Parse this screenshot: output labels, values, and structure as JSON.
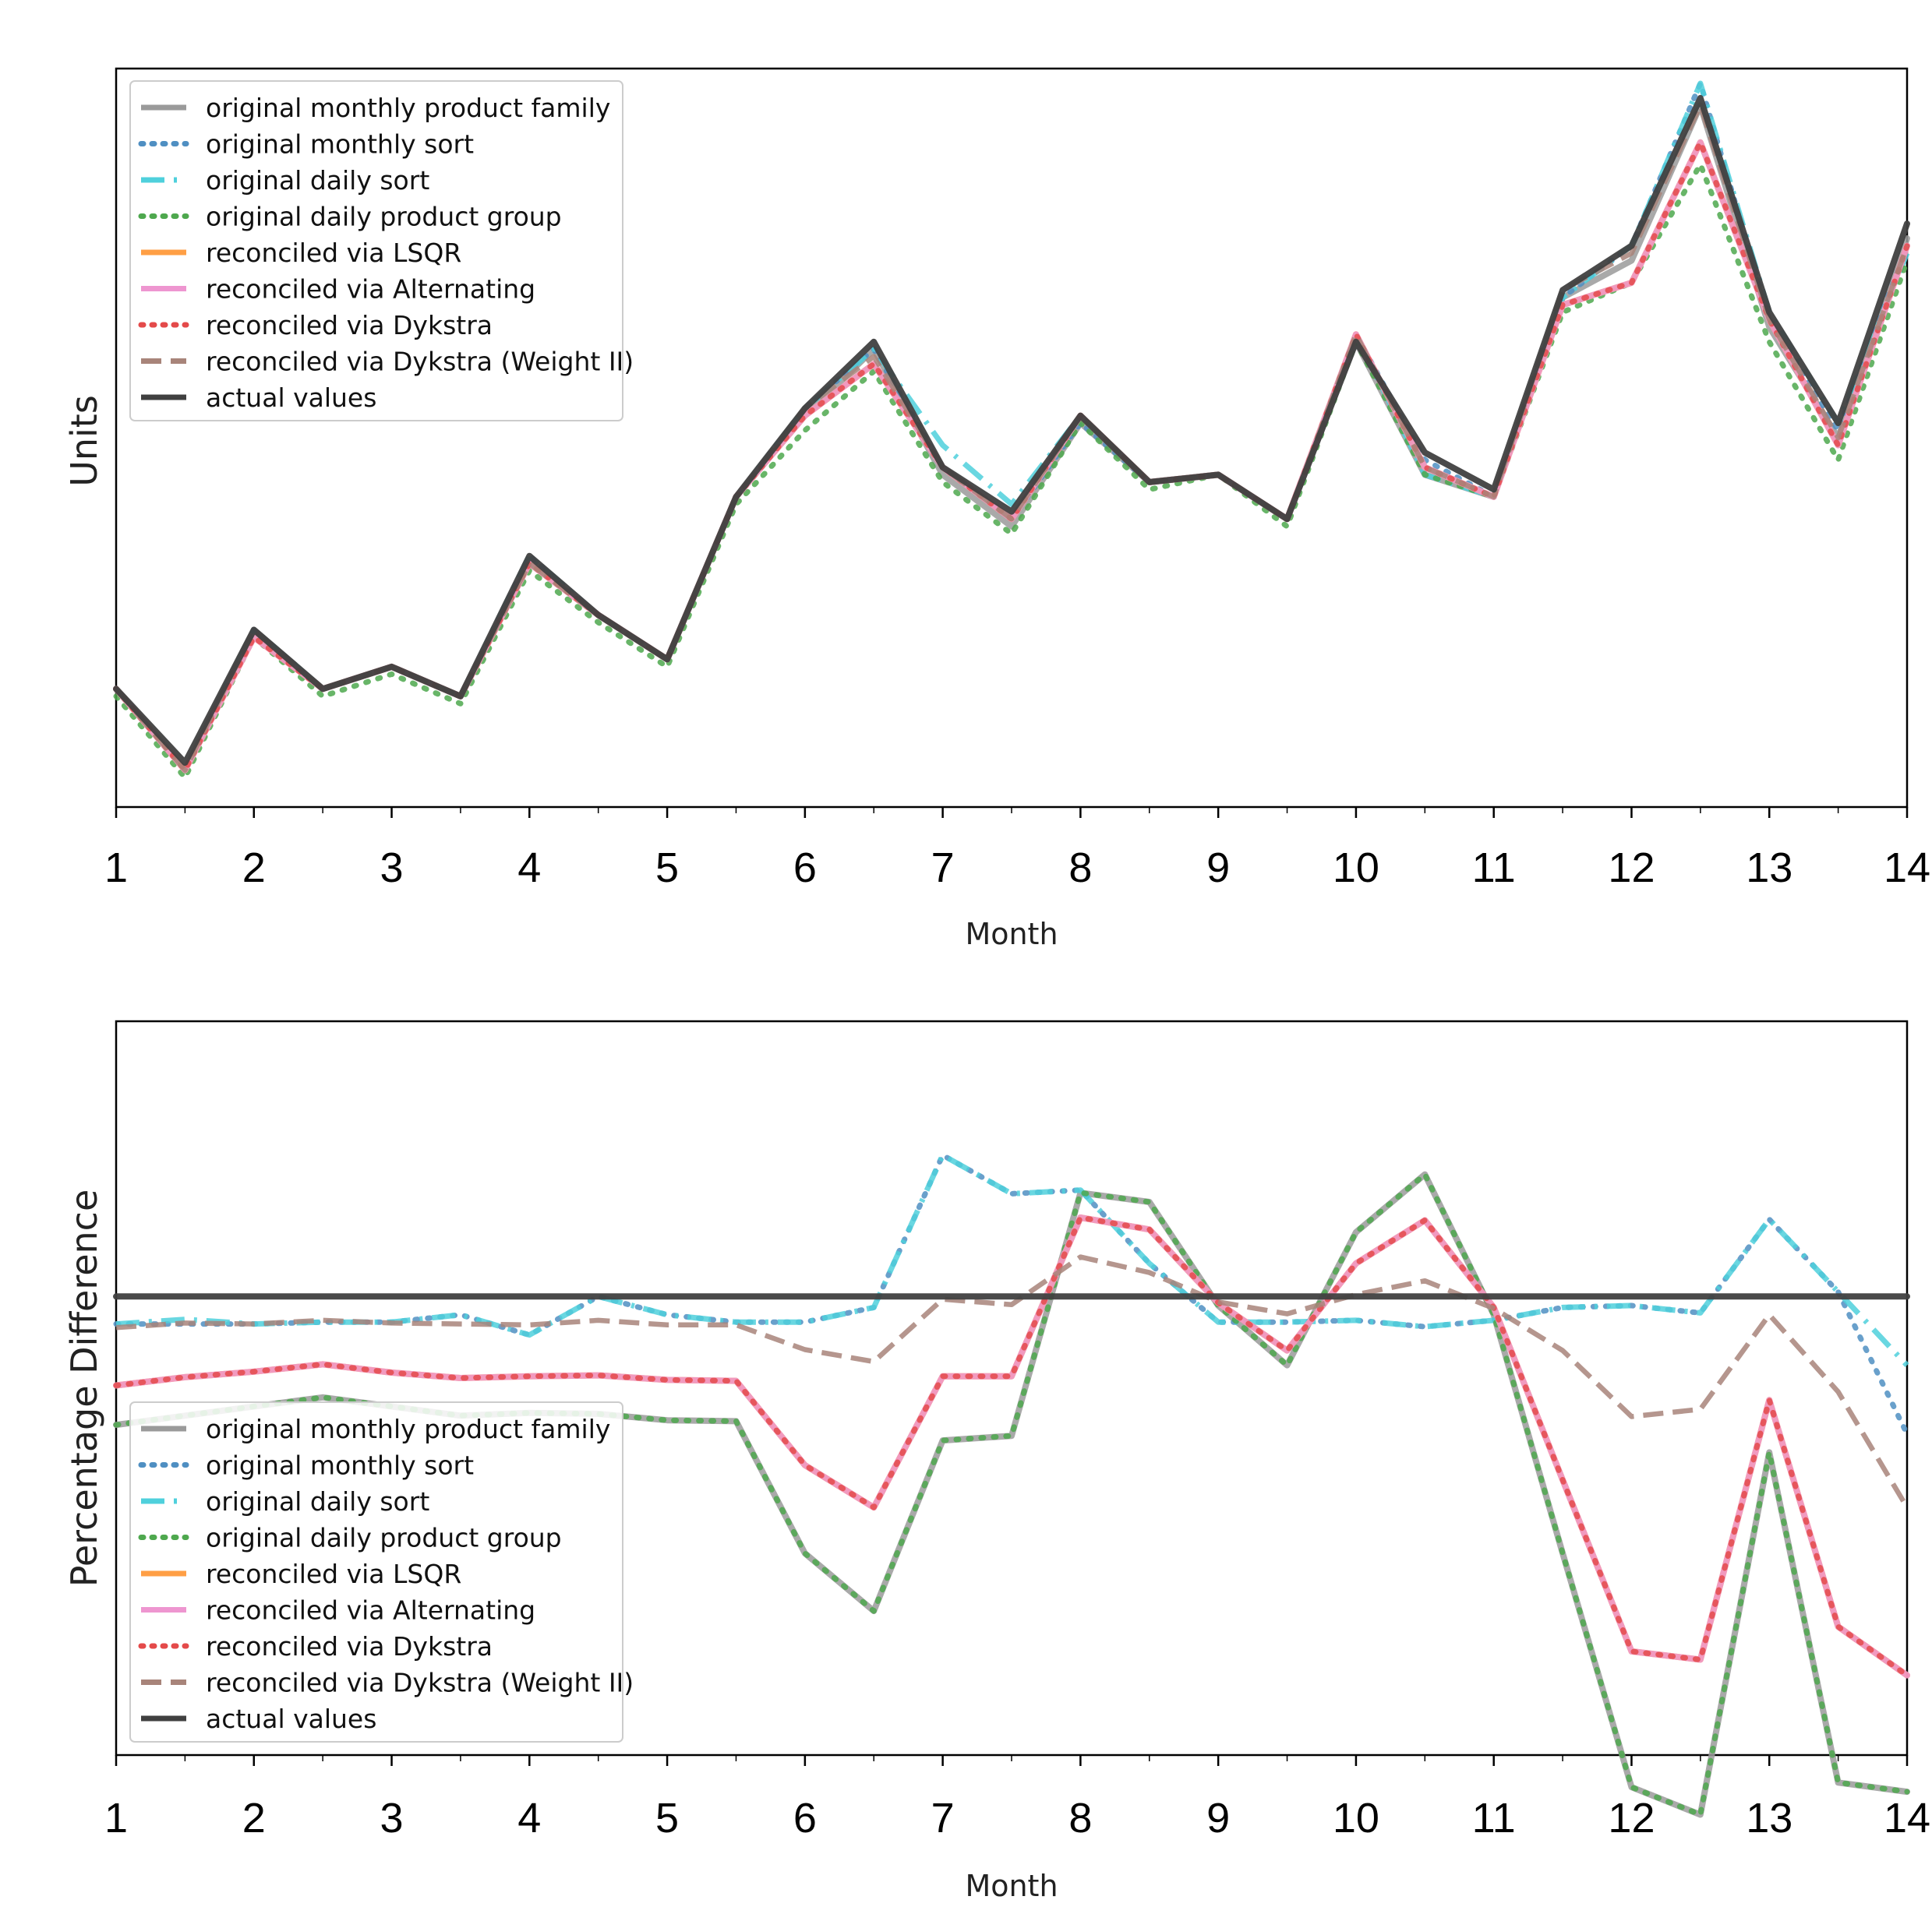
{
  "chart_data": [
    {
      "type": "line",
      "title": "",
      "xlabel": "Month",
      "ylabel": "Units",
      "xlim": [
        1,
        14
      ],
      "ylim": [
        0,
        100
      ],
      "x_ticks": [
        "1",
        "2",
        "3",
        "4",
        "5",
        "6",
        "7",
        "8",
        "9",
        "10",
        "11",
        "12",
        "13",
        "14"
      ],
      "x": [
        1,
        1.5,
        2,
        2.5,
        3,
        3.5,
        4,
        4.5,
        5,
        5.5,
        6,
        6.5,
        7,
        7.5,
        8,
        8.5,
        9,
        9.5,
        10,
        10.5,
        11,
        11.5,
        12,
        12.5,
        13,
        13.5,
        14
      ],
      "legend_position": "upper-left",
      "series": [
        {
          "name": "original monthly product family",
          "color": "#9a9a9a",
          "style": "solid",
          "values": [
            16,
            5,
            24,
            16,
            19,
            15,
            33,
            26,
            20,
            42,
            53,
            62,
            45,
            38,
            52,
            44,
            45,
            39,
            63,
            45,
            42,
            69,
            74,
            95,
            65,
            50,
            77
          ]
        },
        {
          "name": "original monthly sort",
          "color": "#4f8fc2",
          "style": "dotted",
          "values": [
            16,
            5,
            24,
            16,
            19,
            15,
            34,
            26,
            20,
            42,
            54,
            62,
            46,
            39,
            52,
            44,
            45,
            39,
            64,
            47,
            42,
            69,
            76,
            98,
            66,
            51,
            76
          ]
        },
        {
          "name": "original daily sort",
          "color": "#4fd0dc",
          "style": "dashdot",
          "values": [
            16,
            5,
            24,
            16,
            19,
            15,
            34,
            26,
            20,
            42,
            54,
            62,
            49,
            41,
            53,
            44,
            45,
            39,
            64,
            45,
            42,
            69,
            76,
            98,
            67,
            52,
            75
          ]
        },
        {
          "name": "original daily product group",
          "color": "#4ea84e",
          "style": "dotted",
          "values": [
            15,
            4,
            23,
            15,
            18,
            14,
            32,
            25,
            19,
            41,
            51,
            59,
            44,
            37,
            52,
            43,
            45,
            38,
            63,
            45,
            42,
            67,
            71,
            87,
            63,
            47,
            74
          ]
        },
        {
          "name": "reconciled via LSQR",
          "color": "#ff9f45",
          "style": "solid",
          "values": [
            16,
            5,
            23,
            16,
            19,
            15,
            33,
            26,
            20,
            42,
            53,
            60,
            46,
            39,
            53,
            44,
            45,
            39,
            64,
            46,
            42,
            68,
            71,
            90,
            66,
            49,
            76
          ]
        },
        {
          "name": "reconciled via Alternating",
          "color": "#ee96d0",
          "style": "solid",
          "values": [
            16,
            5,
            23,
            16,
            19,
            15,
            33,
            26,
            20,
            42,
            53,
            60,
            46,
            39,
            53,
            44,
            45,
            39,
            64,
            46,
            42,
            68,
            71,
            90,
            66,
            49,
            76
          ]
        },
        {
          "name": "reconciled via Dykstra",
          "color": "#e44a4a",
          "style": "dotted",
          "values": [
            16,
            5,
            23,
            16,
            19,
            15,
            33,
            26,
            20,
            42,
            53,
            60,
            46,
            39,
            53,
            44,
            45,
            39,
            64,
            46,
            42,
            68,
            71,
            90,
            66,
            49,
            76
          ]
        },
        {
          "name": "reconciled via Dykstra (Weight II)",
          "color": "#a8847a",
          "style": "dashed",
          "values": [
            16,
            5,
            24,
            16,
            19,
            15,
            33,
            26,
            20,
            42,
            54,
            61,
            46,
            39,
            53,
            44,
            45,
            39,
            64,
            46,
            42,
            70,
            75,
            95,
            66,
            50,
            76
          ]
        },
        {
          "name": "actual values",
          "color": "#404040",
          "style": "solid",
          "values": [
            16,
            6,
            24,
            16,
            19,
            15,
            34,
            26,
            20,
            42,
            54,
            63,
            46,
            40,
            53,
            44,
            45,
            39,
            63,
            48,
            43,
            70,
            76,
            96,
            67,
            52,
            79
          ]
        }
      ]
    },
    {
      "type": "line",
      "title": "",
      "xlabel": "Month",
      "ylabel": "Percentage Difference",
      "xlim": [
        1,
        14
      ],
      "ylim": [
        -50,
        30
      ],
      "x_ticks": [
        "1",
        "2",
        "3",
        "4",
        "5",
        "6",
        "7",
        "8",
        "9",
        "10",
        "11",
        "12",
        "13",
        "14"
      ],
      "x": [
        1,
        1.5,
        2,
        2.5,
        3,
        3.5,
        4,
        4.5,
        5,
        5.5,
        6,
        6.5,
        7,
        7.5,
        8,
        8.5,
        9,
        9.5,
        10,
        10.5,
        11,
        11.5,
        12,
        12.5,
        13,
        13.5,
        14
      ],
      "legend_position": "lower-left",
      "series": [
        {
          "name": "original monthly product family",
          "color": "#9a9a9a",
          "style": "solid",
          "values": [
            -14,
            -13,
            -12,
            -11,
            -12,
            -13,
            -12.7,
            -12.8,
            -13.5,
            -13.6,
            -28,
            -34.3,
            -15.7,
            -15.2,
            11.3,
            10.3,
            -1,
            -7.5,
            7,
            13.3,
            -2,
            -28,
            -53.5,
            -56.5,
            -17,
            -53,
            -54
          ]
        },
        {
          "name": "original monthly sort",
          "color": "#4f8fc2",
          "style": "dotted",
          "values": [
            -3,
            -3,
            -3,
            -2.8,
            -2.8,
            -2,
            -4.2,
            0,
            -2,
            -2.8,
            -2.8,
            -1.2,
            15.4,
            11.2,
            11.6,
            3.6,
            -2.8,
            -2.8,
            -2.6,
            -3.3,
            -2.6,
            -1.2,
            -1,
            -1.8,
            8.4,
            0.5,
            -15
          ]
        },
        {
          "name": "original daily sort",
          "color": "#4fd0dc",
          "style": "dashdot",
          "values": [
            -3,
            -2.5,
            -3,
            -2.8,
            -2.8,
            -2,
            -4.2,
            0,
            -2,
            -2.8,
            -2.8,
            -1.2,
            15.4,
            11.2,
            11.6,
            3.6,
            -2.8,
            -2.8,
            -2.6,
            -3.3,
            -2.6,
            -1.2,
            -1,
            -1.8,
            8.4,
            0.5,
            -7.5
          ]
        },
        {
          "name": "original daily product group",
          "color": "#4ea84e",
          "style": "dotted",
          "values": [
            -14,
            -13,
            -12,
            -11,
            -12,
            -13,
            -12.7,
            -12.8,
            -13.5,
            -13.6,
            -28,
            -34.3,
            -15.7,
            -15.2,
            11.3,
            10.3,
            -1,
            -7.5,
            7,
            13.3,
            -2,
            -28,
            -53.5,
            -56.5,
            -17,
            -53,
            -54
          ]
        },
        {
          "name": "reconciled via LSQR",
          "color": "#ff9f45",
          "style": "solid",
          "values": [
            -9.7,
            -8.8,
            -8.2,
            -7.4,
            -8.3,
            -8.9,
            -8.7,
            -8.6,
            -9.1,
            -9.2,
            -18.4,
            -23,
            -8.7,
            -8.7,
            8.6,
            7.3,
            -0.7,
            -5.9,
            3.6,
            8.3,
            -1.2,
            -20,
            -38.7,
            -39.6,
            -11.3,
            -36,
            -41.3
          ]
        },
        {
          "name": "reconciled via Alternating",
          "color": "#ee96d0",
          "style": "solid",
          "values": [
            -9.7,
            -8.8,
            -8.2,
            -7.4,
            -8.3,
            -8.9,
            -8.7,
            -8.6,
            -9.1,
            -9.2,
            -18.4,
            -23,
            -8.7,
            -8.7,
            8.6,
            7.3,
            -0.7,
            -5.9,
            3.6,
            8.3,
            -1.2,
            -20,
            -38.7,
            -39.6,
            -11.3,
            -36,
            -41.3
          ]
        },
        {
          "name": "reconciled via Dykstra",
          "color": "#e44a4a",
          "style": "dotted",
          "values": [
            -9.7,
            -8.8,
            -8.2,
            -7.4,
            -8.3,
            -8.9,
            -8.7,
            -8.6,
            -9.1,
            -9.2,
            -18.4,
            -23,
            -8.7,
            -8.7,
            8.6,
            7.3,
            -0.7,
            -5.9,
            3.6,
            8.3,
            -1.2,
            -20,
            -38.7,
            -39.6,
            -11.3,
            -36,
            -41.3
          ]
        },
        {
          "name": "reconciled via Dykstra (Weight II)",
          "color": "#a8847a",
          "style": "dashed",
          "values": [
            -3.4,
            -2.9,
            -3,
            -2.6,
            -2.9,
            -3,
            -3.1,
            -2.6,
            -3.1,
            -3.1,
            -5.8,
            -7.1,
            -0.3,
            -0.9,
            4.3,
            2.6,
            -0.6,
            -1.9,
            0.2,
            1.7,
            -1.3,
            -5.9,
            -13.1,
            -12.3,
            -2,
            -10.4,
            -23
          ]
        },
        {
          "name": "actual values",
          "color": "#404040",
          "style": "solid",
          "values": [
            0,
            0,
            0,
            0,
            0,
            0,
            0,
            0,
            0,
            0,
            0,
            0,
            0,
            0,
            0,
            0,
            0,
            0,
            0,
            0,
            0,
            0,
            0,
            0,
            0,
            0,
            0
          ]
        }
      ]
    }
  ]
}
